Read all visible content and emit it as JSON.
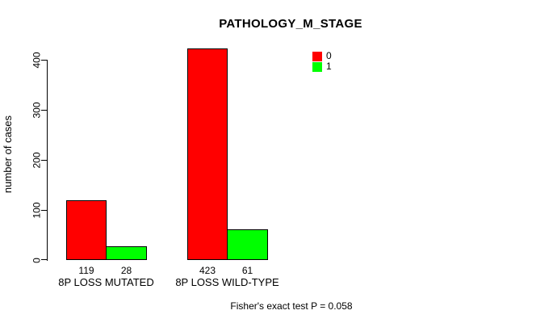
{
  "chart_data": {
    "type": "bar",
    "title": "PATHOLOGY_M_STAGE",
    "ylabel": "number of cases",
    "xlabel": "",
    "categories": [
      "8P LOSS MUTATED",
      "8P LOSS WILD-TYPE"
    ],
    "series": [
      {
        "name": "0",
        "color": "#ff0000",
        "values": [
          119,
          423
        ]
      },
      {
        "name": "1",
        "color": "#00ff00",
        "values": [
          28,
          61
        ]
      }
    ],
    "yticks": [
      0,
      100,
      200,
      300,
      400
    ],
    "ylim": [
      0,
      423
    ],
    "grid": false,
    "legend_position": "top-right",
    "bar_border_color": "#000000",
    "value_labels_shown": true,
    "annotation": "Fisher's exact test P = 0.058"
  },
  "colors": {
    "background": "#ffffff",
    "axis": "#000000",
    "text": "#000000",
    "series_0": "#ff0000",
    "series_1": "#00ff00"
  }
}
